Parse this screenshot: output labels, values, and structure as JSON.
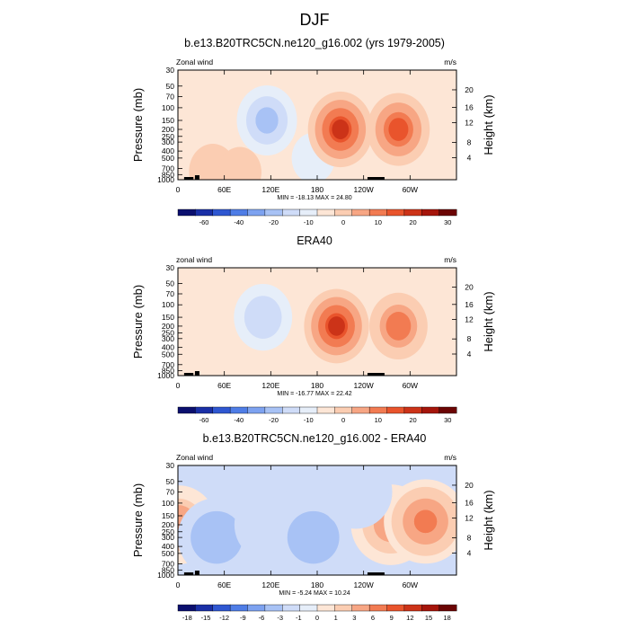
{
  "figure": {
    "title": "DJF"
  },
  "chart_data": [
    {
      "type": "heatmap",
      "title": "b.e13.B20TRC5CN.ne120_g16.002 (yrs 1979-2005)",
      "left_label": "Zonal wind",
      "units": "m/s",
      "ylabel": "Pressure (mb)",
      "right_ylabel": "Height (km)",
      "x_ticks": [
        "0",
        "60E",
        "120E",
        "180",
        "120W",
        "60W"
      ],
      "y_ticks": [
        "30",
        "50",
        "70",
        "100",
        "150",
        "200",
        "250",
        "300",
        "400",
        "500",
        "700",
        "850",
        "1000"
      ],
      "right_ticks": [
        "4",
        "8",
        "12",
        "16",
        "20"
      ],
      "stats": "MIN = -18.13  MAX =  24.80",
      "colorbar_labels": [
        "-60",
        "-40",
        "-20",
        "-10",
        "0",
        "10",
        "20",
        "30"
      ],
      "colorbar_colors": [
        "#0b0f6e",
        "#1a2fa6",
        "#2f57d1",
        "#4f7de6",
        "#7da2f0",
        "#a8c2f5",
        "#cfdcf8",
        "#e6eef9",
        "#fde6d6",
        "#fbcdb2",
        "#f7a684",
        "#f27b52",
        "#e9542c",
        "#cc3318",
        "#a5150b",
        "#6b0504"
      ],
      "field": [
        {
          "lon": 0,
          "p": 1000,
          "value": -3
        },
        {
          "lon": 115,
          "p": 150,
          "value": -15
        },
        {
          "lon": 175,
          "p": 500,
          "value": -5
        },
        {
          "lon": 210,
          "p": 200,
          "value": 22
        },
        {
          "lon": 285,
          "p": 200,
          "value": 18
        },
        {
          "lon": 45,
          "p": 850,
          "value": 4
        },
        {
          "lon": 80,
          "p": 850,
          "value": 5
        }
      ]
    },
    {
      "type": "heatmap",
      "title": "ERA40",
      "left_label": "zonal wind",
      "units": "m/s",
      "ylabel": "Pressure (mb)",
      "right_ylabel": "Height (km)",
      "x_ticks": [
        "0",
        "60E",
        "120E",
        "180",
        "120W",
        "60W"
      ],
      "y_ticks": [
        "30",
        "50",
        "70",
        "100",
        "150",
        "200",
        "250",
        "300",
        "400",
        "500",
        "700",
        "850",
        "1000"
      ],
      "right_ticks": [
        "4",
        "8",
        "12",
        "16",
        "20"
      ],
      "stats": "MIN = -16.77  MAX =  22.42",
      "colorbar_labels": [
        "-60",
        "-40",
        "-20",
        "-10",
        "0",
        "10",
        "20",
        "30"
      ],
      "colorbar_colors": [
        "#0b0f6e",
        "#1a2fa6",
        "#2f57d1",
        "#4f7de6",
        "#7da2f0",
        "#a8c2f5",
        "#cfdcf8",
        "#e6eef9",
        "#fde6d6",
        "#fbcdb2",
        "#f7a684",
        "#f27b52",
        "#e9542c",
        "#cc3318",
        "#a5150b",
        "#6b0504"
      ],
      "field": [
        {
          "lon": 110,
          "p": 150,
          "value": -13
        },
        {
          "lon": 205,
          "p": 200,
          "value": 22
        },
        {
          "lon": 285,
          "p": 200,
          "value": 13
        },
        {
          "lon": 30,
          "p": 500,
          "value": -3
        }
      ]
    },
    {
      "type": "heatmap",
      "title": "b.e13.B20TRC5CN.ne120_g16.002 - ERA40",
      "left_label": "Zonal wind",
      "units": "m/s",
      "ylabel": "Pressure (mb)",
      "right_ylabel": "Height (km)",
      "x_ticks": [
        "0",
        "60E",
        "120E",
        "180",
        "120W",
        "60W"
      ],
      "y_ticks": [
        "30",
        "50",
        "70",
        "100",
        "150",
        "200",
        "250",
        "300",
        "400",
        "500",
        "700",
        "850",
        "1000"
      ],
      "right_ticks": [
        "4",
        "8",
        "12",
        "16",
        "20"
      ],
      "stats": "MIN =  -5.24  MAX =  10.24",
      "colorbar_labels": [
        "-18",
        "-15",
        "-12",
        "-9",
        "-6",
        "-3",
        "-1",
        "0",
        "1",
        "3",
        "6",
        "9",
        "12",
        "15",
        "18"
      ],
      "colorbar_colors": [
        "#0b0f6e",
        "#1a2fa6",
        "#2f57d1",
        "#4f7de6",
        "#7da2f0",
        "#a8c2f5",
        "#cfdcf8",
        "#e6eef9",
        "#fde6d6",
        "#fbcdb2",
        "#f7a684",
        "#f27b52",
        "#e9542c",
        "#cc3318",
        "#a5150b",
        "#6b0504"
      ],
      "field": [
        {
          "lon": 0,
          "p": 200,
          "value": 4
        },
        {
          "lon": 50,
          "p": 300,
          "value": -4
        },
        {
          "lon": 120,
          "p": 200,
          "value": -2
        },
        {
          "lon": 175,
          "p": 300,
          "value": -4
        },
        {
          "lon": 275,
          "p": 200,
          "value": 5
        },
        {
          "lon": 320,
          "p": 180,
          "value": 9
        },
        {
          "lon": 230,
          "p": 70,
          "value": -2
        }
      ]
    }
  ]
}
